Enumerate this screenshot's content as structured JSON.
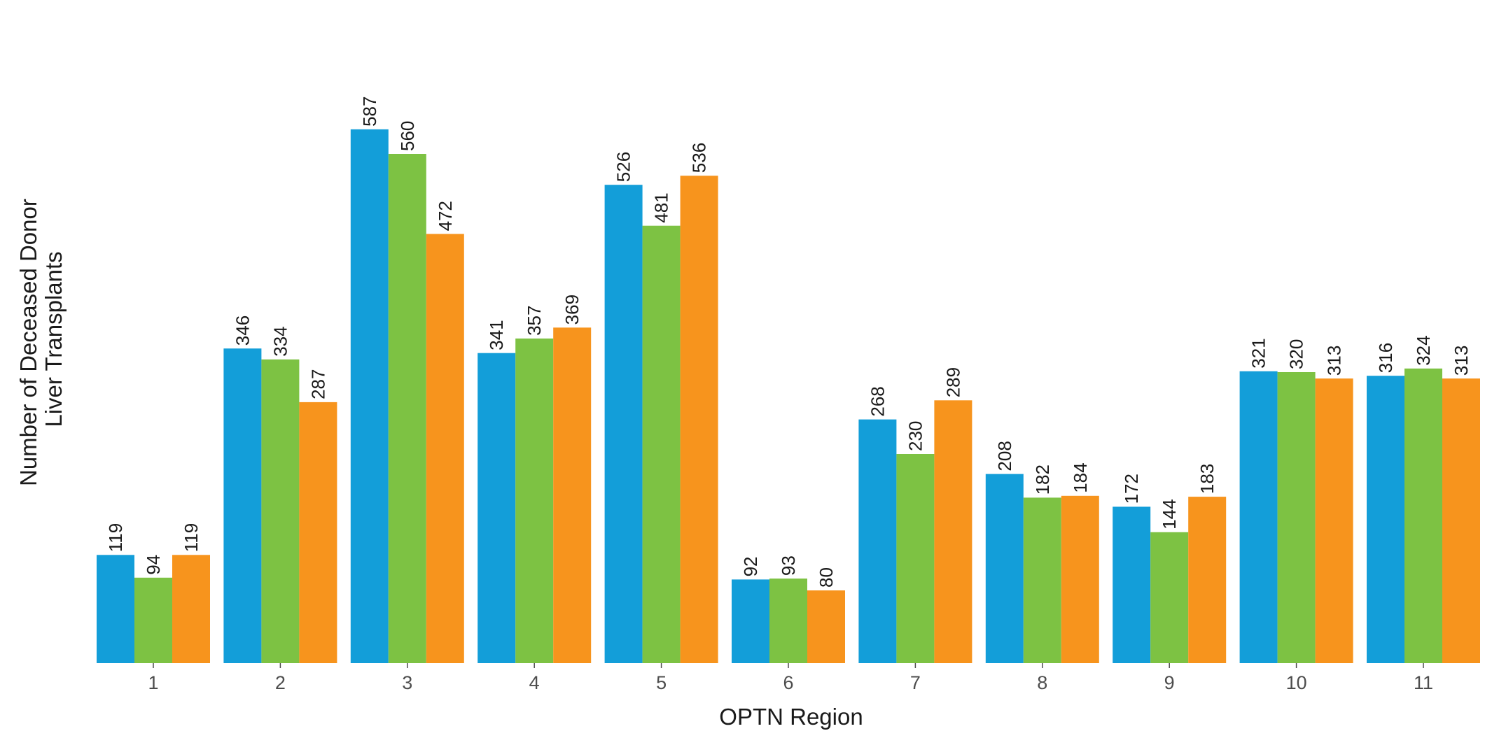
{
  "chart_data": {
    "type": "bar",
    "title": "",
    "xlabel": "OPTN Region",
    "ylabel_lines": [
      "Number of Deceased Donor",
      "Liver Transplants"
    ],
    "categories": [
      "1",
      "2",
      "3",
      "4",
      "5",
      "6",
      "7",
      "8",
      "9",
      "10",
      "11"
    ],
    "series": [
      {
        "color": "#139ED9",
        "values": [
          119,
          346,
          587,
          341,
          526,
          92,
          268,
          208,
          172,
          321,
          316
        ]
      },
      {
        "color": "#7DC243",
        "values": [
          94,
          334,
          560,
          357,
          481,
          93,
          230,
          182,
          144,
          320,
          324
        ]
      },
      {
        "color": "#F7941D",
        "values": [
          119,
          287,
          472,
          369,
          536,
          80,
          289,
          184,
          183,
          313,
          313
        ]
      }
    ],
    "ylim": [
      0,
      600
    ],
    "grid": false,
    "legend": "none",
    "data_labels": true
  }
}
